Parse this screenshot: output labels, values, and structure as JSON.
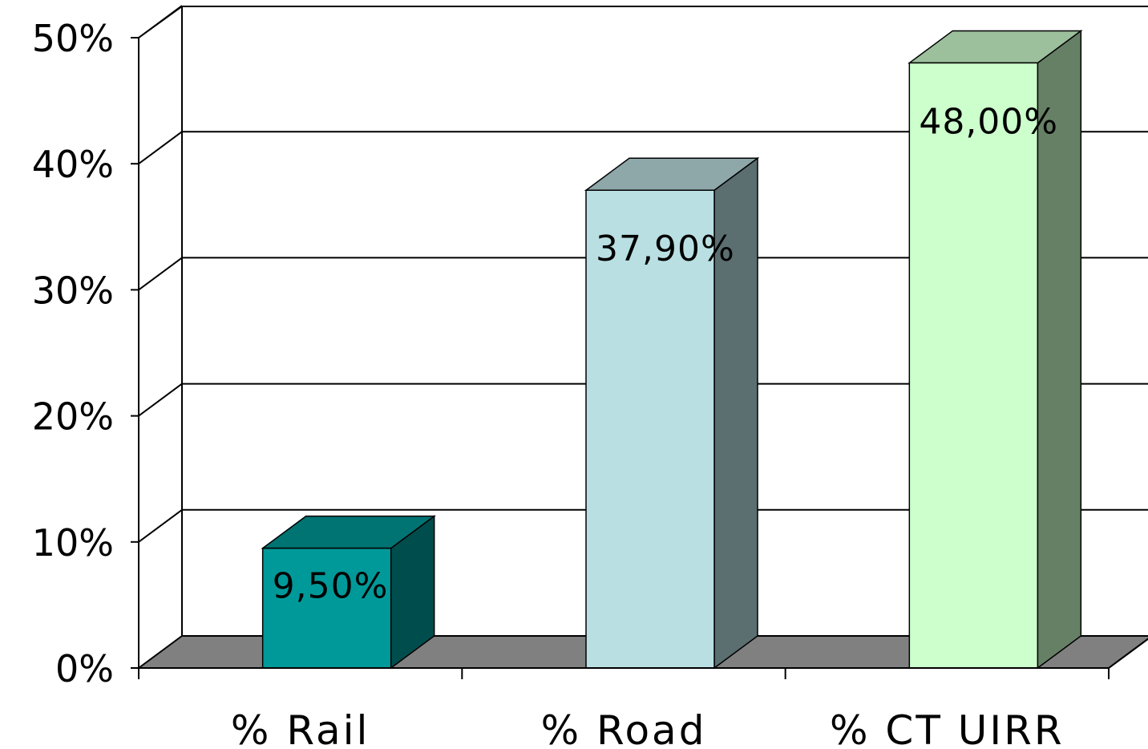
{
  "chart_data": {
    "type": "bar",
    "style": "3d-column",
    "categories": [
      "% Rail",
      "% Road",
      "% CT UIRR"
    ],
    "values": [
      9.5,
      37.9,
      48.0
    ],
    "data_labels": [
      "9,50%",
      "37,90%",
      "48,00%"
    ],
    "ylim": [
      0,
      50
    ],
    "yticks": [
      0,
      10,
      20,
      30,
      40,
      50
    ],
    "ytick_labels": [
      "0%",
      "10%",
      "20%",
      "30%",
      "40%",
      "50%"
    ],
    "title": "",
    "xlabel": "",
    "ylabel": "",
    "grid": true,
    "legend": "none",
    "colors": {
      "bars": [
        {
          "front": "#009999",
          "top": "#007373",
          "side": "#004d4d"
        },
        {
          "front": "#b9dfe2",
          "top": "#8ea7a9",
          "side": "#5b6f71"
        },
        {
          "front": "#ccffcc",
          "top": "#9cbf9c",
          "side": "#668066"
        }
      ],
      "floor": "#808080",
      "gridline": "#000000"
    }
  }
}
